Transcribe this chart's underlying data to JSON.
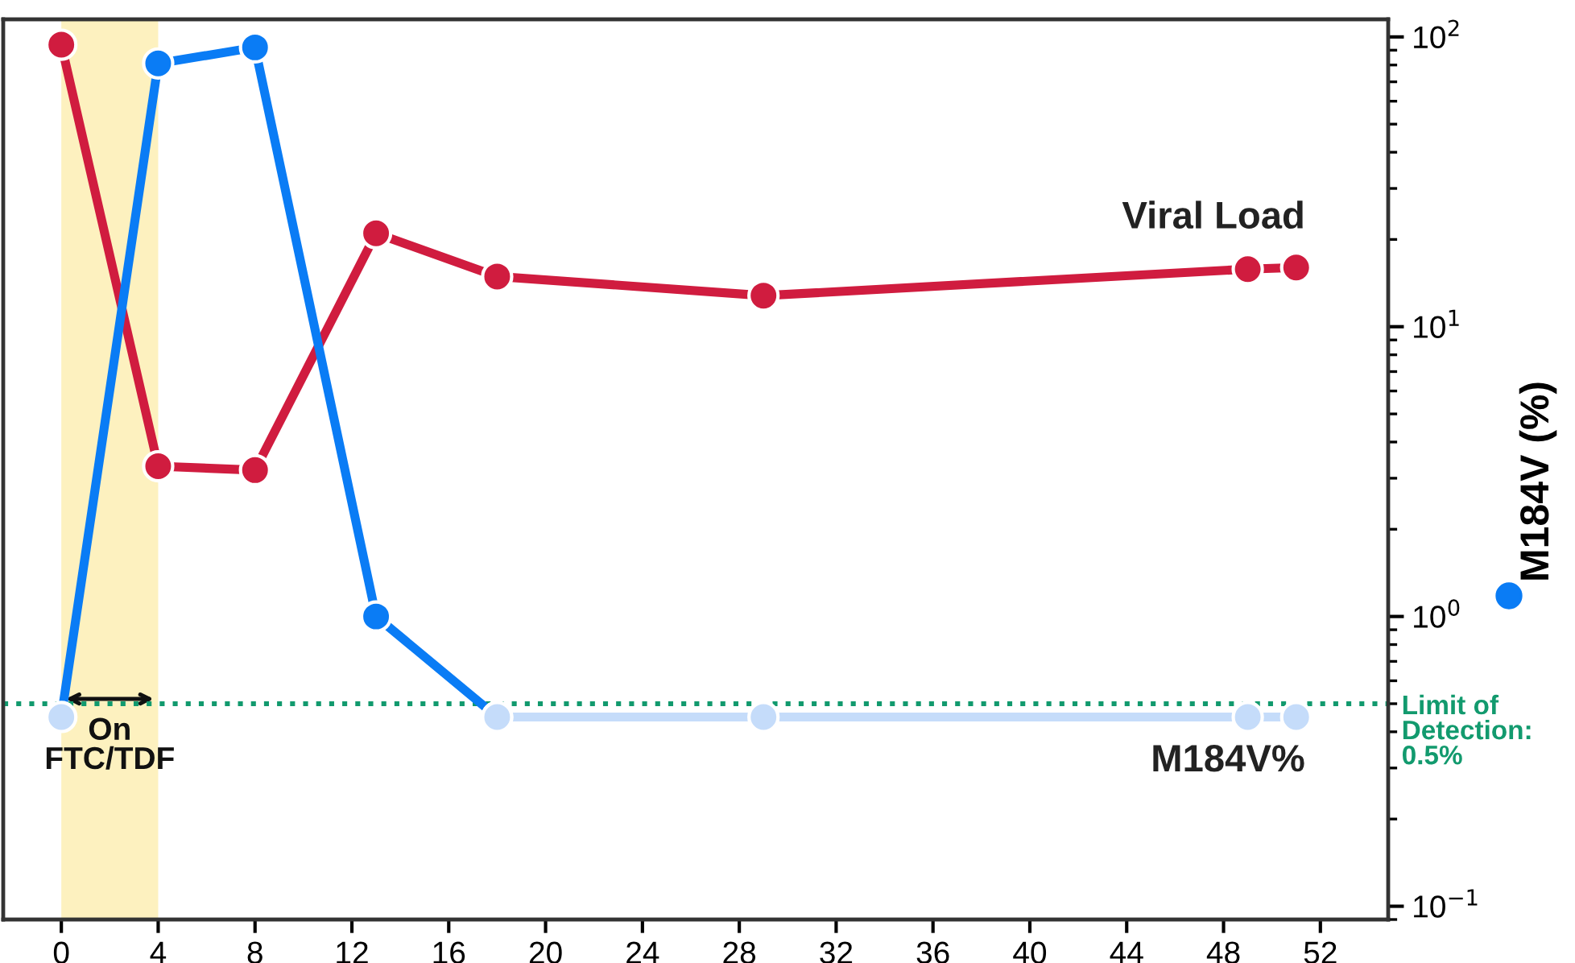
{
  "chart_data": {
    "type": "line",
    "x": [
      0,
      4,
      8,
      13,
      18,
      29,
      49,
      51
    ],
    "series": [
      {
        "color": "#d01c3f",
        "axis": "y2",
        "values": [
          94,
          3.3,
          3.2,
          21,
          14.9,
          12.8,
          15.8,
          16
        ]
      },
      {
        "color": "#0a7cf5",
        "axis": "y2",
        "values": [
          0.45,
          81,
          92,
          1.0,
          0.45,
          null,
          null,
          null
        ],
        "colors": [
          "#c5dcfa",
          "#0a7cf5",
          "#0a7cf5",
          "#0a7cf5",
          "#c5dcfa",
          null,
          null,
          null
        ]
      },
      {
        "color": "#c5dcfa",
        "axis": "y2",
        "values": [
          null,
          null,
          null,
          null,
          0.45,
          0.45,
          0.45,
          0.45
        ]
      }
    ],
    "annotations": [
      "Viral Load",
      "M184V%"
    ],
    "y2label": "M184V (%)",
    "log": "y2",
    "xlim": [
      -2.4,
      54.8
    ],
    "xticks": [
      0,
      4,
      8,
      12,
      16,
      20,
      24,
      28,
      32,
      36,
      40,
      44,
      48,
      52
    ],
    "y2lim": [
      0.09,
      115
    ],
    "y2ticks": [
      {
        "value": 0.1,
        "label": "10$^{−1}$"
      },
      {
        "value": 1,
        "label": "10$^{0}$"
      },
      {
        "value": 10,
        "label": "10$^{1}$"
      },
      {
        "value": 100,
        "label": "10$^{2}$"
      }
    ],
    "marker": "circle",
    "line_style": "solid",
    "grid": false,
    "legend": false,
    "ref_lines": [
      {
        "axis": "y2",
        "value": 0.5,
        "label": "Limit of\nDetection:\n0.5%",
        "color": "#129a6e",
        "line_style": "dotted"
      }
    ],
    "bands": [
      {
        "axis": "x",
        "from": 0,
        "to": 4,
        "label": "On\nFTC/TDF",
        "color": "#fdf1bf"
      }
    ]
  }
}
